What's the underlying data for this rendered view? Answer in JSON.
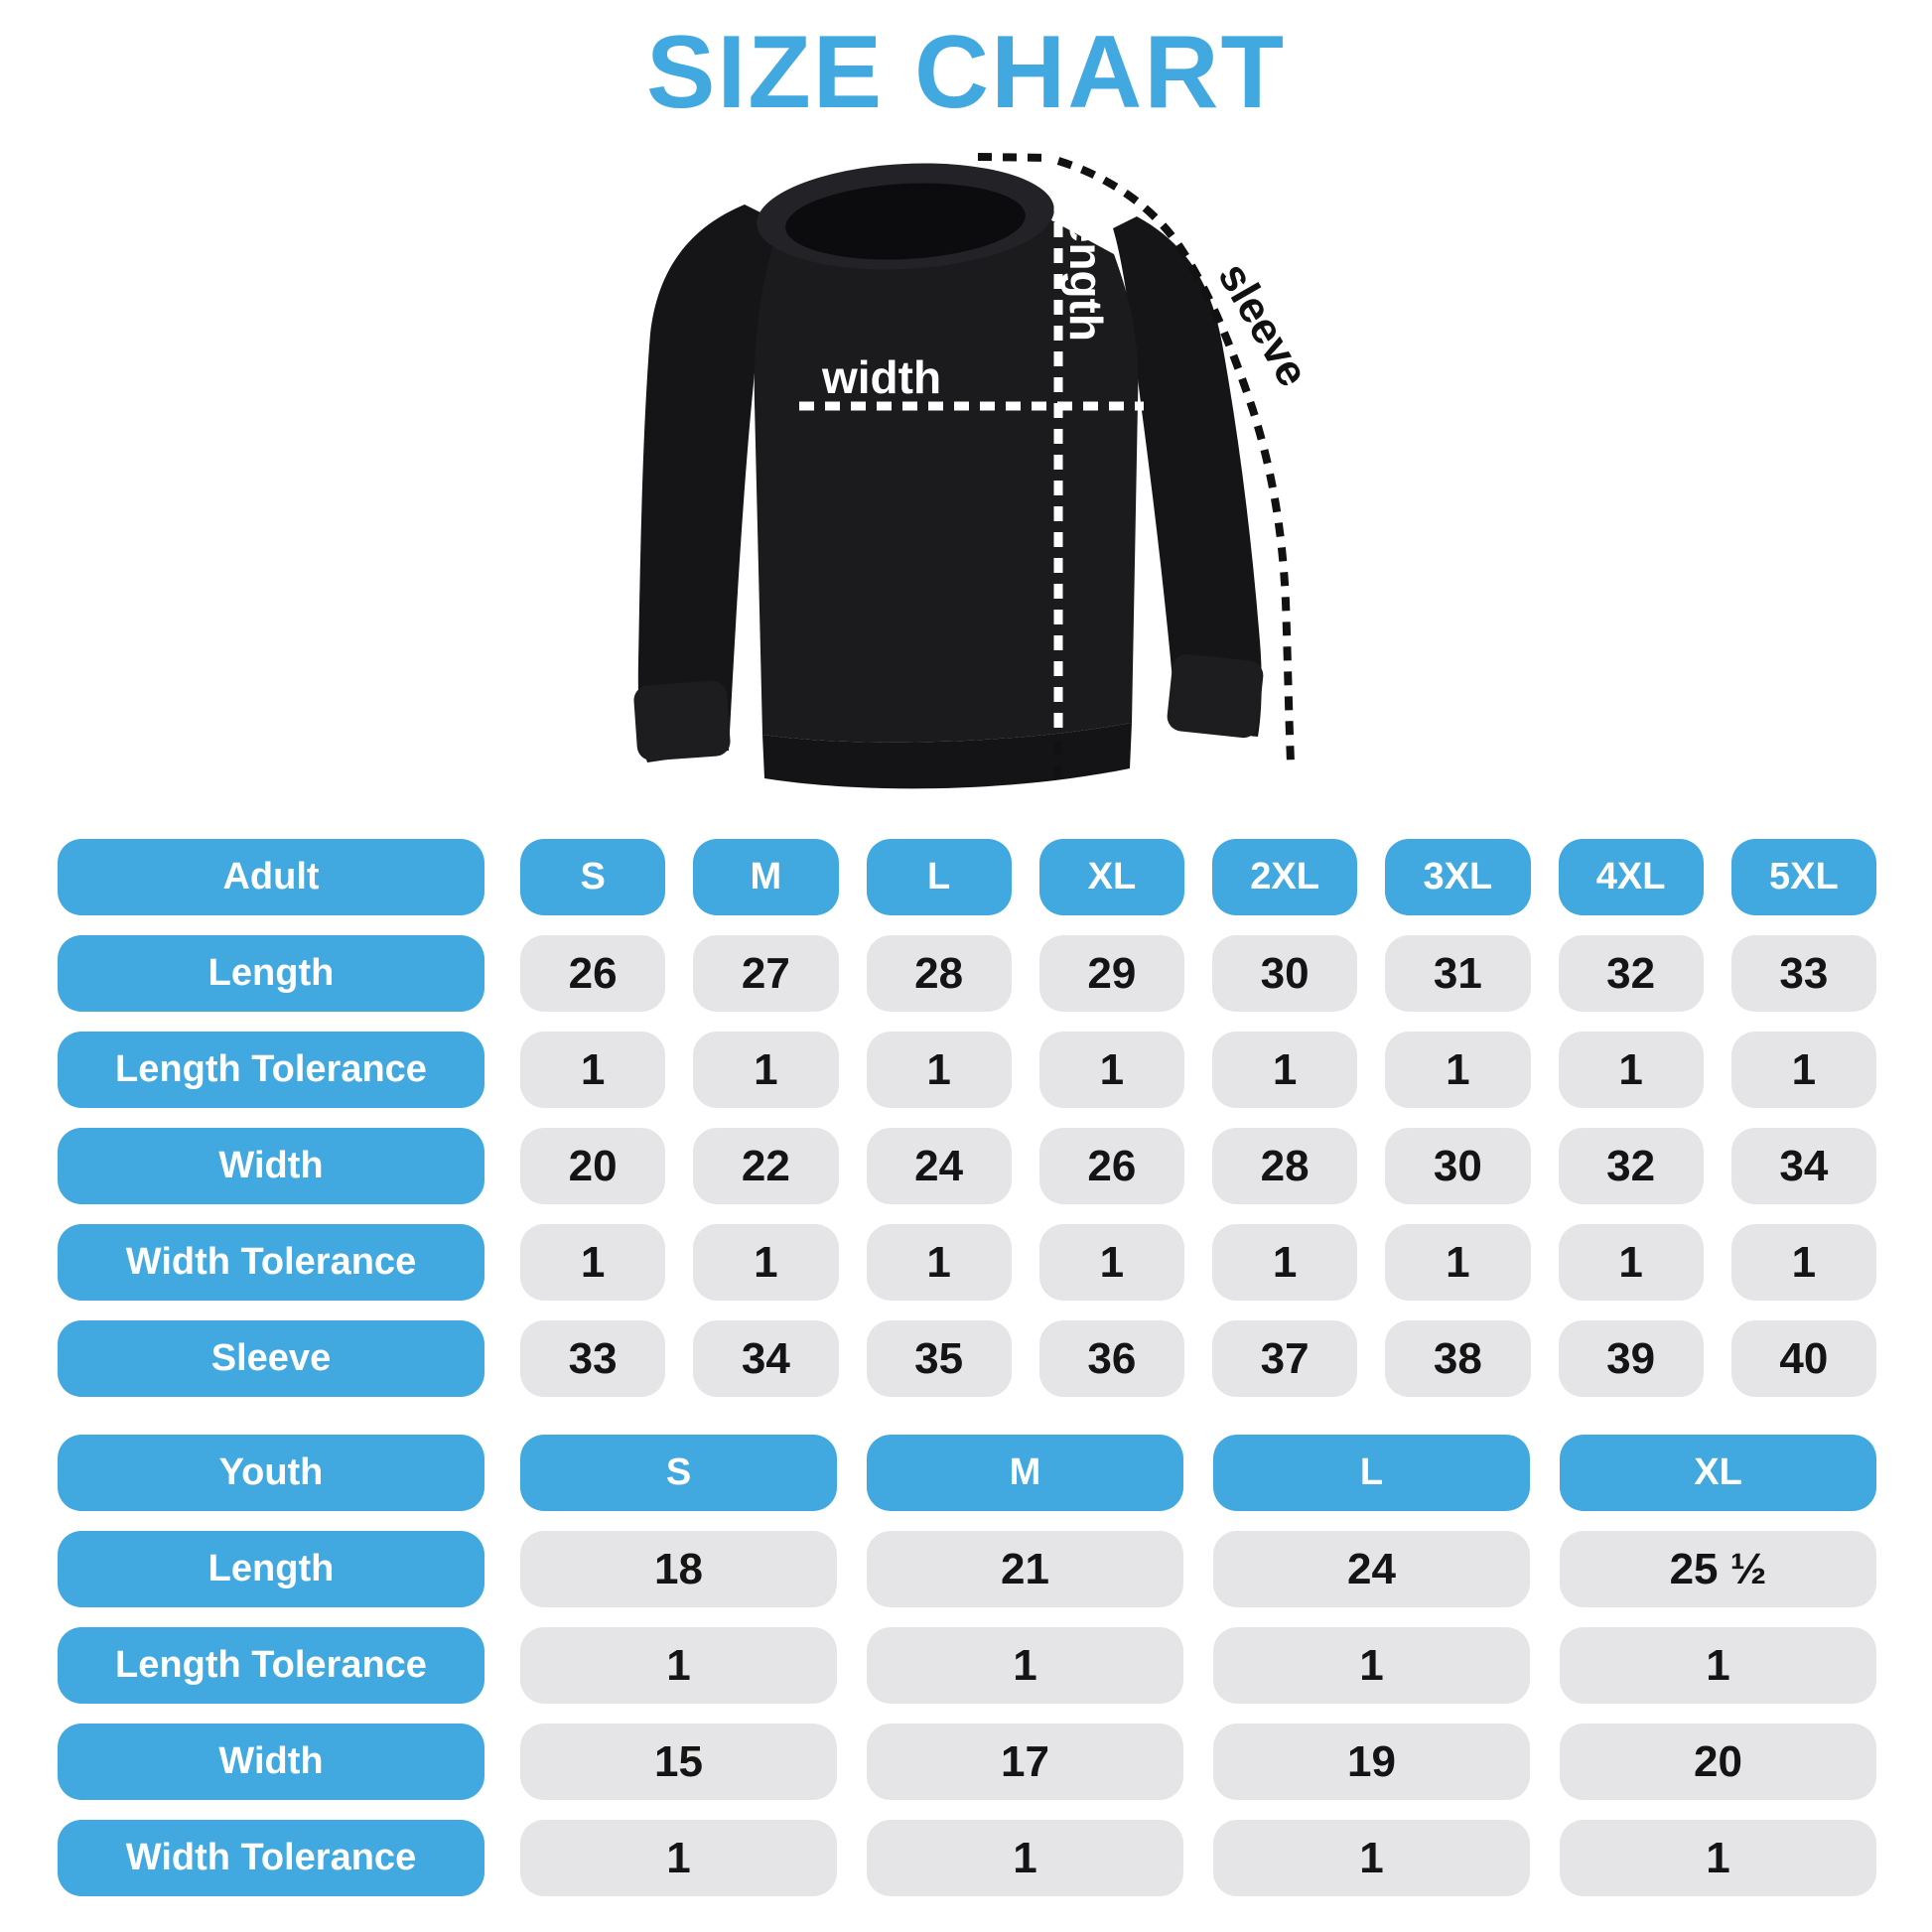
{
  "title": "SIZE CHART",
  "colors": {
    "accent": "#42a8e0",
    "cell_bg": "#e5e5e7",
    "ink": "#141414",
    "garment": "#1a1a1c",
    "guide_dark": "#111111",
    "guide_light": "#ffffff"
  },
  "diagram": {
    "length_label": "length",
    "width_label": "width",
    "sleeve_label": "sleeve"
  },
  "chart_data": [
    {
      "type": "table",
      "name": "Adult",
      "size_headers": [
        "S",
        "M",
        "L",
        "XL",
        "2XL",
        "3XL",
        "4XL",
        "5XL"
      ],
      "rows": [
        {
          "label": "Length",
          "values": [
            "26",
            "27",
            "28",
            "29",
            "30",
            "31",
            "32",
            "33"
          ]
        },
        {
          "label": "Length Tolerance",
          "values": [
            "1",
            "1",
            "1",
            "1",
            "1",
            "1",
            "1",
            "1"
          ]
        },
        {
          "label": "Width",
          "values": [
            "20",
            "22",
            "24",
            "26",
            "28",
            "30",
            "32",
            "34"
          ]
        },
        {
          "label": "Width Tolerance",
          "values": [
            "1",
            "1",
            "1",
            "1",
            "1",
            "1",
            "1",
            "1"
          ]
        },
        {
          "label": "Sleeve",
          "values": [
            "33",
            "34",
            "35",
            "36",
            "37",
            "38",
            "39",
            "40"
          ]
        }
      ]
    },
    {
      "type": "table",
      "name": "Youth",
      "size_headers": [
        "S",
        "M",
        "L",
        "XL"
      ],
      "rows": [
        {
          "label": "Length",
          "values": [
            "18",
            "21",
            "24",
            "25 ½"
          ]
        },
        {
          "label": "Length Tolerance",
          "values": [
            "1",
            "1",
            "1",
            "1"
          ]
        },
        {
          "label": "Width",
          "values": [
            "15",
            "17",
            "19",
            "20"
          ]
        },
        {
          "label": "Width Tolerance",
          "values": [
            "1",
            "1",
            "1",
            "1"
          ]
        }
      ]
    }
  ]
}
